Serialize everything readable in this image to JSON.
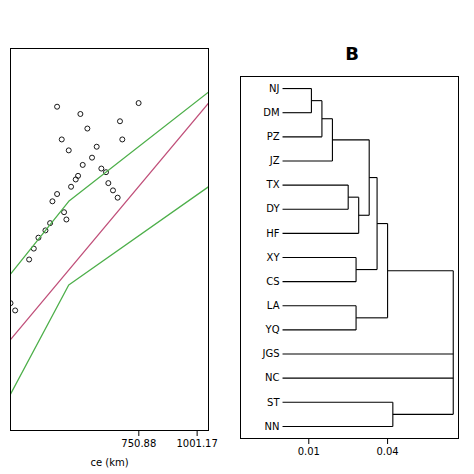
{
  "chart_data": [
    {
      "type": "scatter",
      "xlabel": "ce (km)",
      "xlim": [
        200,
        1050
      ],
      "xticks": [
        750.88,
        1001.17
      ],
      "ylim": [
        -0.025,
        0.08
      ],
      "yticks": [],
      "tick_labels": "x",
      "series": [
        {
          "type": "scatter",
          "color": "#000000",
          "marker": "circle",
          "x": [
            500,
            530,
            490,
            510,
            420,
            450,
            380,
            400,
            460,
            480,
            550,
            570,
            590,
            610,
            350,
            370,
            300,
            320,
            280,
            620,
            640,
            660,
            670,
            680,
            200,
            220,
            430,
            440,
            750,
            400
          ],
          "values": [
            0.062,
            0.058,
            0.045,
            0.048,
            0.055,
            0.052,
            0.038,
            0.04,
            0.042,
            0.044,
            0.05,
            0.053,
            0.047,
            0.046,
            0.03,
            0.032,
            0.025,
            0.028,
            0.022,
            0.043,
            0.041,
            0.039,
            0.06,
            0.055,
            0.01,
            0.008,
            0.035,
            0.033,
            0.065,
            0.064
          ]
        },
        {
          "type": "line",
          "color": "#c0507a",
          "x": [
            200,
            1050
          ],
          "values": [
            0.0,
            0.065
          ]
        },
        {
          "type": "line",
          "color": "#4daf4a",
          "x": [
            200,
            450,
            1050
          ],
          "values": [
            0.018,
            0.038,
            0.068
          ]
        },
        {
          "type": "line",
          "color": "#4daf4a",
          "x": [
            200,
            450,
            1050
          ],
          "values": [
            -0.015,
            0.015,
            0.042
          ]
        }
      ]
    },
    {
      "type": "dendrogram",
      "title": "B",
      "labels": [
        "NJ",
        "DM",
        "PZ",
        "JZ",
        "TX",
        "DY",
        "HF",
        "XY",
        "CS",
        "LA",
        "YQ",
        "JGS",
        "NC",
        "ST",
        "NN"
      ],
      "tree": {
        "height": 0.065,
        "children": [
          {
            "height": 0.04,
            "children": [
              {
                "height": 0.036,
                "children": [
                  {
                    "height": 0.033,
                    "children": [
                      {
                        "height": 0.019,
                        "children": [
                          {
                            "height": 0.015,
                            "children": [
                              {
                                "height": 0.011,
                                "children": [
                                  "NJ",
                                  "DM"
                                ]
                              },
                              "PZ"
                            ]
                          },
                          "JZ"
                        ]
                      },
                      {
                        "height": 0.029,
                        "children": [
                          {
                            "height": 0.025,
                            "children": [
                              "TX",
                              "DY"
                            ]
                          },
                          "HF"
                        ]
                      }
                    ]
                  },
                  {
                    "height": 0.028,
                    "children": [
                      "XY",
                      "CS"
                    ]
                  }
                ]
              },
              {
                "height": 0.028,
                "children": [
                  "LA",
                  "YQ"
                ]
              }
            ]
          },
          "JGS",
          "NC",
          {
            "height": 0.042,
            "children": [
              "ST",
              "NN"
            ]
          }
        ]
      },
      "xlim": [
        -0.016,
        0.067
      ],
      "xticks": [
        0.01,
        0.04
      ],
      "tick_labels": "x"
    }
  ]
}
